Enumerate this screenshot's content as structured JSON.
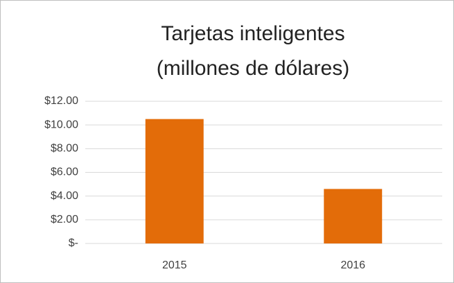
{
  "chart_data": {
    "type": "bar",
    "title": [
      "Tarjetas inteligentes",
      "(millones de dólares)"
    ],
    "categories": [
      "2015",
      "2016"
    ],
    "values": [
      10.5,
      4.6
    ],
    "color": "#e36c09",
    "ylim": [
      0,
      12
    ],
    "yticks": [
      {
        "value": 0,
        "label": "$-"
      },
      {
        "value": 2,
        "label": "$2.00"
      },
      {
        "value": 4,
        "label": "$4.00"
      },
      {
        "value": 6,
        "label": "$6.00"
      },
      {
        "value": 8,
        "label": "$8.00"
      },
      {
        "value": 10,
        "label": "$10.00"
      },
      {
        "value": 12,
        "label": "$12.00"
      }
    ],
    "grid": true
  }
}
